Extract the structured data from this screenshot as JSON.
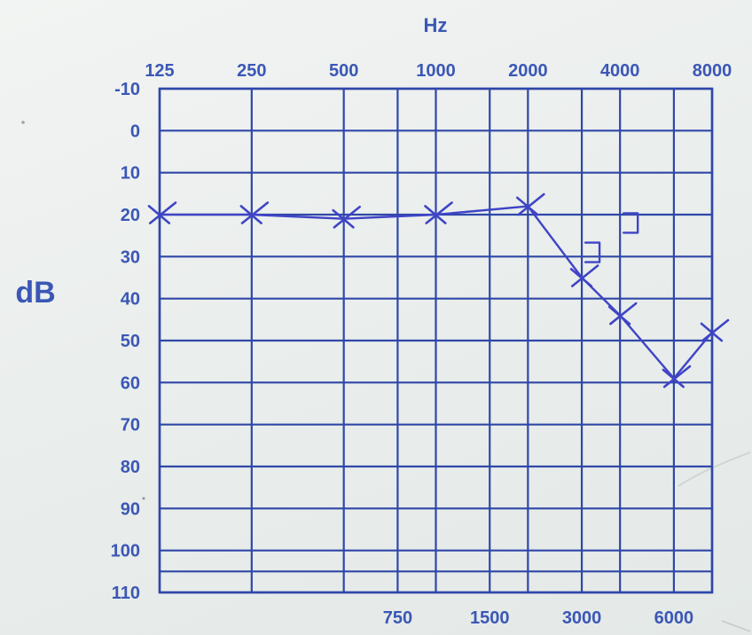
{
  "chart_data": {
    "type": "line",
    "title": "",
    "xlabel": "Hz",
    "ylabel": "dB",
    "x_scale": "log",
    "y_inverted": true,
    "grid": true,
    "legend": "none",
    "x_ticks_top": [
      "125",
      "250",
      "500",
      "1000",
      "2000",
      "4000",
      "8000"
    ],
    "x_ticks_bottom": [
      "750",
      "1500",
      "3000",
      "6000"
    ],
    "y_ticks": [
      "-10",
      "0",
      "10",
      "20",
      "30",
      "40",
      "50",
      "60",
      "70",
      "80",
      "90",
      "100",
      "110"
    ],
    "xlim": [
      125,
      8000
    ],
    "ylim": [
      -10,
      110
    ],
    "series": [
      {
        "marker": "x",
        "color": "#3f44c6",
        "x": [
          125,
          250,
          500,
          1000,
          2000,
          3000,
          4000,
          6000,
          8000
        ],
        "y": [
          20,
          20,
          21,
          20,
          18,
          35,
          44,
          59,
          48
        ]
      }
    ],
    "bone_conduction": {
      "marker": "bracket",
      "color": "#3f44c6",
      "x": [
        3000,
        4000
      ],
      "y": [
        29,
        22
      ]
    }
  }
}
